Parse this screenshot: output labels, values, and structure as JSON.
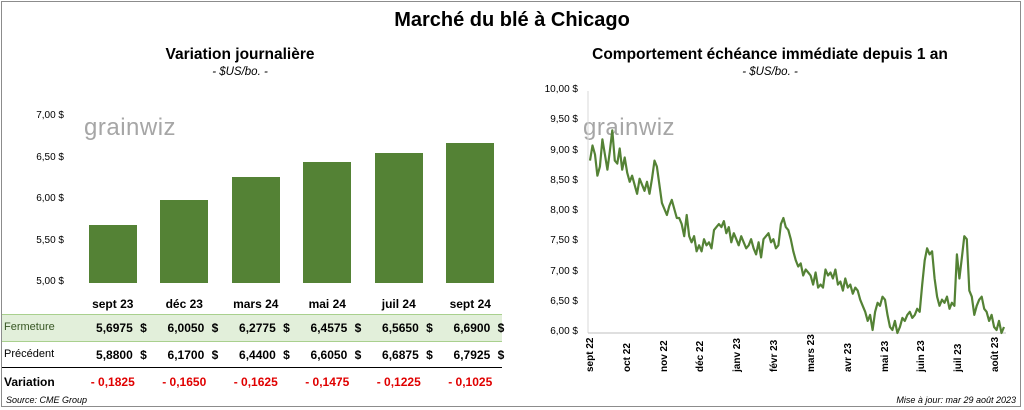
{
  "title": "Marché du blé à Chicago",
  "left": {
    "subtitle": "Variation  journalière",
    "unit": "- $US/bo. -",
    "watermark": "grainwiz",
    "yticks": [
      "5,00 $",
      "5,50 $",
      "6,00 $",
      "6,50 $",
      "7,00 $"
    ],
    "table": {
      "rows": [
        {
          "label": "Fermeture",
          "values": [
            "5,6975",
            "6,0050",
            "6,2775",
            "6,4575",
            "6,5650",
            "6,6900"
          ],
          "currency": "$"
        },
        {
          "label": "Précédent",
          "values": [
            "5,8800",
            "6,1700",
            "6,4400",
            "6,6050",
            "6,6875",
            "6,7925"
          ],
          "currency": "$"
        },
        {
          "label": "Variation",
          "values": [
            "- 0,1825",
            "- 0,1650",
            "- 0,1625",
            "- 0,1475",
            "- 0,1225",
            "- 0,1025"
          ]
        }
      ]
    }
  },
  "right": {
    "subtitle": "Comportement  échéance immédiate depuis 1 an",
    "unit": "- $US/bo. -",
    "watermark": "grainwiz",
    "yticks": [
      "6,00 $",
      "6,50 $",
      "7,00 $",
      "7,50 $",
      "8,00 $",
      "8,50 $",
      "9,00 $",
      "9,50 $",
      "10,00 $"
    ],
    "xticks": [
      "sept 22",
      "oct 22",
      "nov 22",
      "déc 22",
      "janv 23",
      "févr 23",
      "mars 23",
      "avr 23",
      "mai 23",
      "juin 23",
      "juil 23",
      "août 23"
    ]
  },
  "footer": {
    "source": "Source: CME Group",
    "updated": "Mise à jour: mar 29 août 2023"
  },
  "colors": {
    "bar": "#548235",
    "line": "#548235",
    "highlight_row": "#e2efda",
    "negative": "#e00000"
  },
  "chart_data": [
    {
      "type": "bar",
      "title": "Variation  journalière",
      "categories": [
        "sept 23",
        "déc 23",
        "mars 24",
        "mai 24",
        "juil 24",
        "sept 24"
      ],
      "values": [
        5.6975,
        6.005,
        6.2775,
        6.4575,
        6.565,
        6.69
      ],
      "ylim": [
        5.0,
        7.0
      ],
      "ylabel": "",
      "grid": false
    },
    {
      "type": "line",
      "title": "Comportement  échéance immédiate depuis 1 an",
      "x_range": [
        "2022-08-29",
        "2023-08-29"
      ],
      "ylim": [
        6.0,
        10.0
      ],
      "grid": false,
      "series": [
        {
          "values": [
            8.85,
            9.1,
            8.95,
            8.6,
            8.75,
            9.2,
            8.95,
            8.7,
            9.0,
            9.35,
            8.85,
            8.8,
            9.05,
            8.7,
            8.9,
            8.65,
            8.5,
            8.6,
            8.45,
            8.3,
            8.55,
            8.45,
            8.35,
            8.5,
            8.3,
            8.55,
            8.85,
            8.75,
            8.45,
            8.15,
            8.05,
            7.95,
            8.1,
            8.2,
            8.05,
            7.9,
            7.9,
            7.8,
            7.6,
            7.95,
            7.6,
            7.5,
            7.6,
            7.35,
            7.45,
            7.35,
            7.55,
            7.45,
            7.5,
            7.4,
            7.7,
            7.75,
            7.8,
            7.75,
            7.85,
            7.65,
            7.75,
            7.5,
            7.65,
            7.55,
            7.45,
            7.6,
            7.5,
            7.4,
            7.45,
            7.55,
            7.4,
            7.3,
            7.5,
            7.25,
            7.55,
            7.6,
            7.65,
            7.5,
            7.55,
            7.4,
            7.45,
            7.8,
            7.9,
            7.75,
            7.7,
            7.55,
            7.35,
            7.2,
            7.1,
            7.15,
            6.95,
            7.05,
            7.0,
            6.95,
            6.8,
            7.0,
            6.75,
            6.8,
            6.75,
            7.05,
            6.95,
            7.0,
            6.9,
            7.05,
            6.8,
            6.85,
            6.7,
            6.9,
            6.75,
            6.8,
            6.65,
            6.75,
            6.7,
            6.55,
            6.45,
            6.35,
            6.2,
            6.3,
            6.05,
            6.35,
            6.5,
            6.45,
            6.6,
            6.55,
            6.3,
            6.1,
            6.05,
            6.2,
            6.0,
            6.1,
            6.25,
            6.2,
            6.3,
            6.35,
            6.25,
            6.3,
            6.4,
            6.35,
            6.8,
            7.2,
            7.4,
            7.3,
            7.35,
            6.9,
            6.6,
            6.45,
            6.55,
            6.5,
            6.6,
            6.4,
            6.5,
            6.45,
            7.3,
            6.9,
            7.25,
            7.6,
            7.55,
            6.7,
            6.6,
            6.3,
            6.45,
            6.55,
            6.6,
            6.4,
            6.35,
            6.2,
            6.3,
            6.1,
            6.05,
            6.2,
            6.0,
            6.1
          ]
        }
      ]
    }
  ]
}
